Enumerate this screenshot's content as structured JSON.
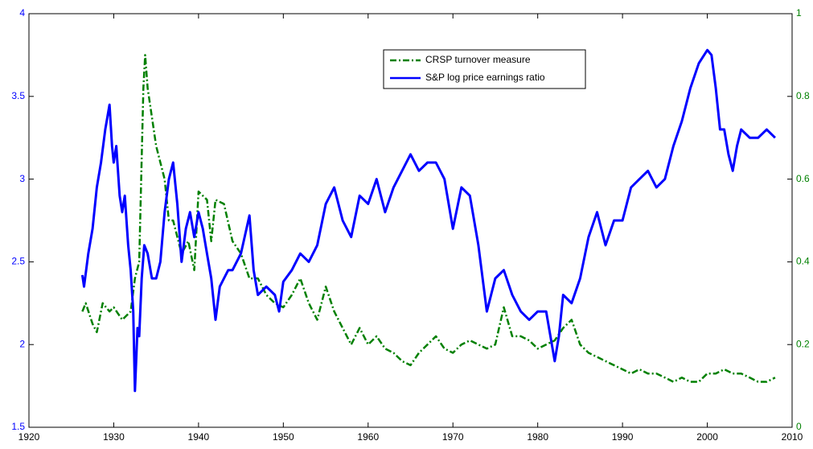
{
  "chart_data": {
    "type": "line",
    "xlim": [
      1920,
      2010
    ],
    "xticks": [
      1920,
      1930,
      1940,
      1950,
      1960,
      1970,
      1980,
      1990,
      2000,
      2010
    ],
    "ylim": [
      1.5,
      4
    ],
    "yticks": [
      1.5,
      2,
      2.5,
      3,
      3.5,
      4
    ],
    "y2lim": [
      0,
      1
    ],
    "y2ticks": [
      0,
      0.2,
      0.4,
      0.6,
      0.8,
      1
    ],
    "legend": "north",
    "series": [
      {
        "name": "CRSP turnover measure",
        "color": "#008000",
        "axis": "y2",
        "dash": "dashdot",
        "x": [
          1926.3,
          1926.7,
          1927.5,
          1928,
          1928.7,
          1929.5,
          1930,
          1931,
          1932,
          1932.5,
          1933,
          1933.5,
          1933.7,
          1934,
          1935,
          1936,
          1936.5,
          1937,
          1938,
          1938.8,
          1939.5,
          1940,
          1941,
          1941.5,
          1942,
          1943,
          1944,
          1945,
          1946,
          1947,
          1948,
          1949,
          1950,
          1951,
          1952,
          1953,
          1954,
          1955,
          1956,
          1957,
          1958,
          1959,
          1960,
          1961,
          1962,
          1963,
          1964,
          1965,
          1966,
          1967,
          1968,
          1969,
          1970,
          1971,
          1972,
          1973,
          1974,
          1975,
          1976,
          1977,
          1978,
          1979,
          1980,
          1981,
          1982,
          1983,
          1984,
          1985,
          1986,
          1987,
          1988,
          1989,
          1990,
          1991,
          1992,
          1993,
          1994,
          1995,
          1996,
          1997,
          1998,
          1999,
          2000,
          2001,
          2002,
          2003,
          2004,
          2005,
          2006,
          2007,
          2008
        ],
        "values": [
          0.28,
          0.3,
          0.25,
          0.23,
          0.3,
          0.28,
          0.29,
          0.26,
          0.28,
          0.36,
          0.4,
          0.82,
          0.9,
          0.82,
          0.68,
          0.6,
          0.5,
          0.5,
          0.42,
          0.45,
          0.38,
          0.57,
          0.55,
          0.45,
          0.55,
          0.54,
          0.45,
          0.42,
          0.36,
          0.36,
          0.32,
          0.3,
          0.29,
          0.32,
          0.36,
          0.3,
          0.26,
          0.34,
          0.28,
          0.24,
          0.2,
          0.24,
          0.2,
          0.22,
          0.19,
          0.18,
          0.16,
          0.15,
          0.18,
          0.2,
          0.22,
          0.19,
          0.18,
          0.2,
          0.21,
          0.2,
          0.19,
          0.2,
          0.29,
          0.22,
          0.22,
          0.21,
          0.19,
          0.2,
          0.21,
          0.24,
          0.26,
          0.2,
          0.18,
          0.17,
          0.16,
          0.15,
          0.14,
          0.13,
          0.14,
          0.13,
          0.13,
          0.12,
          0.11,
          0.12,
          0.11,
          0.11,
          0.13,
          0.13,
          0.14,
          0.13,
          0.13,
          0.12,
          0.11,
          0.11,
          0.12
        ]
      },
      {
        "name": "S&P log price earnings ratio",
        "color": "#0000ff",
        "axis": "y",
        "x": [
          1926.3,
          1926.5,
          1927,
          1927.5,
          1928,
          1928.5,
          1929,
          1929.5,
          1929.8,
          1930,
          1930.3,
          1930.7,
          1931,
          1931.3,
          1931.7,
          1932,
          1932.3,
          1932.5,
          1932.8,
          1933,
          1933.3,
          1933.6,
          1934,
          1934.5,
          1935,
          1935.5,
          1936,
          1936.5,
          1937,
          1937.5,
          1938,
          1938.5,
          1939,
          1939.5,
          1940,
          1940.5,
          1941,
          1941.5,
          1942,
          1942.5,
          1943,
          1943.5,
          1944,
          1945,
          1946,
          1946.5,
          1947,
          1948,
          1949,
          1949.5,
          1950,
          1951,
          1952,
          1953,
          1954,
          1955,
          1956,
          1957,
          1958,
          1959,
          1960,
          1961,
          1962,
          1963,
          1964,
          1965,
          1966,
          1967,
          1968,
          1969,
          1970,
          1971,
          1972,
          1973,
          1974,
          1975,
          1976,
          1977,
          1978,
          1979,
          1980,
          1981,
          1982,
          1982.5,
          1983,
          1984,
          1985,
          1986,
          1987,
          1988,
          1989,
          1990,
          1991,
          1992,
          1993,
          1994,
          1995,
          1996,
          1997,
          1998,
          1999,
          2000,
          2000.5,
          2001,
          2001.5,
          2002,
          2002.5,
          2003,
          2003.5,
          2004,
          2005,
          2006,
          2007,
          2008
        ],
        "values": [
          2.42,
          2.35,
          2.55,
          2.7,
          2.95,
          3.1,
          3.3,
          3.45,
          3.2,
          3.1,
          3.2,
          2.9,
          2.8,
          2.9,
          2.6,
          2.45,
          2.2,
          1.72,
          2.1,
          2.05,
          2.4,
          2.6,
          2.55,
          2.4,
          2.4,
          2.5,
          2.8,
          3.0,
          3.1,
          2.85,
          2.5,
          2.7,
          2.8,
          2.65,
          2.8,
          2.7,
          2.55,
          2.4,
          2.15,
          2.35,
          2.4,
          2.45,
          2.45,
          2.55,
          2.78,
          2.45,
          2.3,
          2.35,
          2.3,
          2.2,
          2.38,
          2.45,
          2.55,
          2.5,
          2.6,
          2.85,
          2.95,
          2.75,
          2.65,
          2.9,
          2.85,
          3.0,
          2.8,
          2.95,
          3.05,
          3.15,
          3.05,
          3.1,
          3.1,
          3.0,
          2.7,
          2.95,
          2.9,
          2.6,
          2.2,
          2.4,
          2.45,
          2.3,
          2.2,
          2.15,
          2.2,
          2.2,
          1.9,
          2.05,
          2.3,
          2.25,
          2.4,
          2.65,
          2.8,
          2.6,
          2.75,
          2.75,
          2.95,
          3.0,
          3.05,
          2.95,
          3.0,
          3.2,
          3.35,
          3.55,
          3.7,
          3.78,
          3.75,
          3.55,
          3.3,
          3.3,
          3.15,
          3.05,
          3.2,
          3.3,
          3.25,
          3.25,
          3.3,
          3.25
        ]
      }
    ]
  }
}
